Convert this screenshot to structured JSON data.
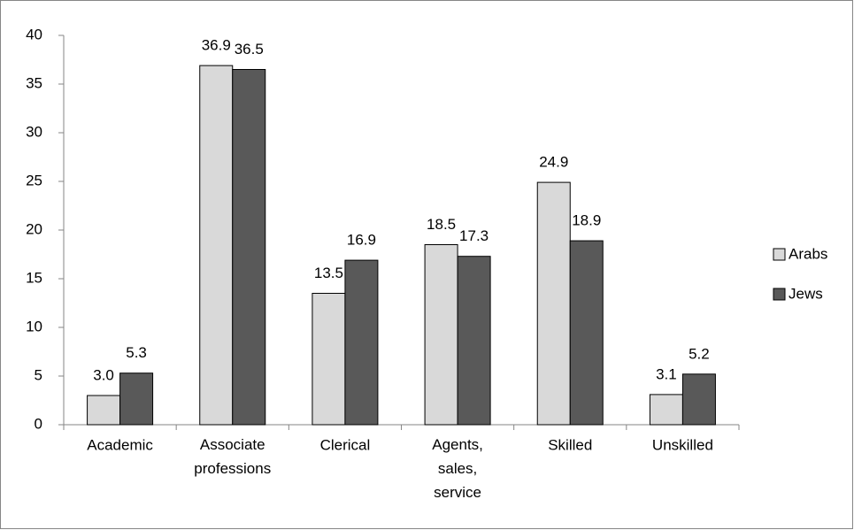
{
  "chart_data": {
    "type": "bar",
    "categories": [
      "Academic",
      "Associate professions",
      "Clerical",
      "Agents, sales, service",
      "Skilled",
      "Unskilled"
    ],
    "series": [
      {
        "name": "Arabs",
        "color": "#d9d9d9",
        "values": [
          3.0,
          36.9,
          13.5,
          18.5,
          24.9,
          3.1
        ],
        "value_labels": [
          "3.0",
          "36.9",
          "13.5",
          "18.5",
          "24.9",
          "3.1"
        ]
      },
      {
        "name": "Jews",
        "color": "#595959",
        "values": [
          5.3,
          36.5,
          16.9,
          17.3,
          18.9,
          5.2
        ],
        "value_labels": [
          "5.3",
          "36.5",
          "16.9",
          "17.3",
          "18.9",
          "5.2"
        ]
      }
    ],
    "ylim": [
      0,
      40
    ],
    "yticks": [
      0,
      5,
      10,
      15,
      20,
      25,
      30,
      35,
      40
    ],
    "grid": false,
    "legend": "right"
  }
}
